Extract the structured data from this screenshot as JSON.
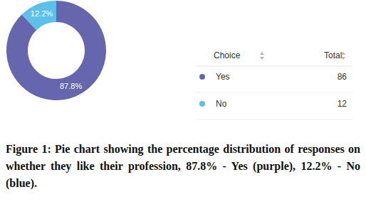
{
  "chart_data": {
    "type": "donut",
    "title": "Figure 1: Pie chart showing the percentage distribution of responses on whether they like their profession, 87.8% - Yes (purple), 12.2% - No (blue).",
    "categories": [
      "Yes",
      "No"
    ],
    "values": [
      87.8,
      12.2
    ],
    "value_labels": [
      "87.8%",
      "12.2%"
    ],
    "data_labels": true,
    "colors": [
      "#6566ad",
      "#5cc0ea"
    ],
    "legend_columns": [
      "Choice",
      "Total"
    ],
    "totals": [
      86,
      12
    ]
  }
}
